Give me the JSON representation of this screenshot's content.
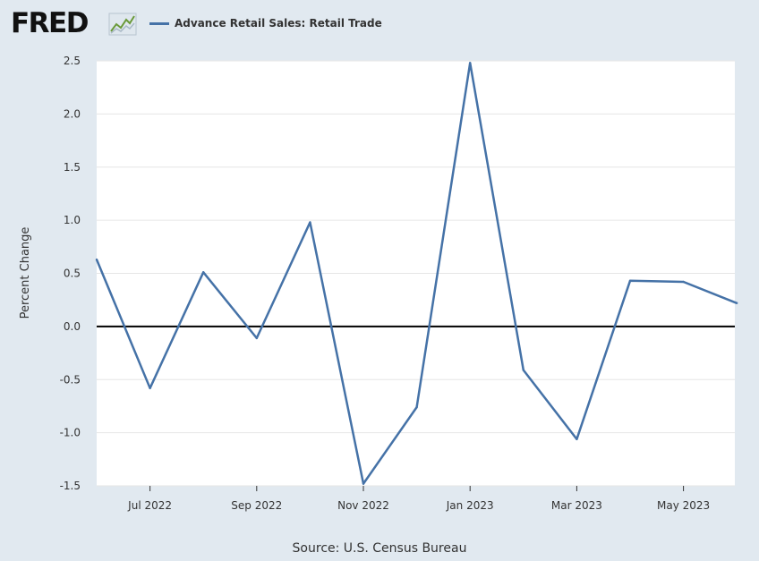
{
  "header": {
    "logo_text": "FRED",
    "logo_icon": "line-chart-icon"
  },
  "source": "Source: U.S. Census Bureau",
  "chart_data": {
    "type": "line",
    "title": "",
    "xlabel": "",
    "ylabel": "Percent Change",
    "legend_position": "top",
    "grid": true,
    "ylim": [
      -1.5,
      2.5
    ],
    "yticks": [
      "-1.5",
      "-1.0",
      "-0.5",
      "0.0",
      "0.5",
      "1.0",
      "1.5",
      "2.0",
      "2.5"
    ],
    "xticks": [
      "Jul 2022",
      "Sep 2022",
      "Nov 2022",
      "Jan 2023",
      "Mar 2023",
      "May 2023"
    ],
    "zero_line": true,
    "series": [
      {
        "name": "Advance Retail Sales: Retail Trade",
        "color": "#4572a7",
        "x": [
          "2022-06",
          "2022-07",
          "2022-08",
          "2022-09",
          "2022-10",
          "2022-11",
          "2022-12",
          "2023-01",
          "2023-02",
          "2023-03",
          "2023-04",
          "2023-05",
          "2023-06"
        ],
        "values": [
          0.63,
          -0.58,
          0.51,
          -0.11,
          0.98,
          -1.48,
          -0.76,
          2.48,
          -0.41,
          -1.06,
          0.43,
          0.42,
          0.22
        ]
      }
    ]
  }
}
